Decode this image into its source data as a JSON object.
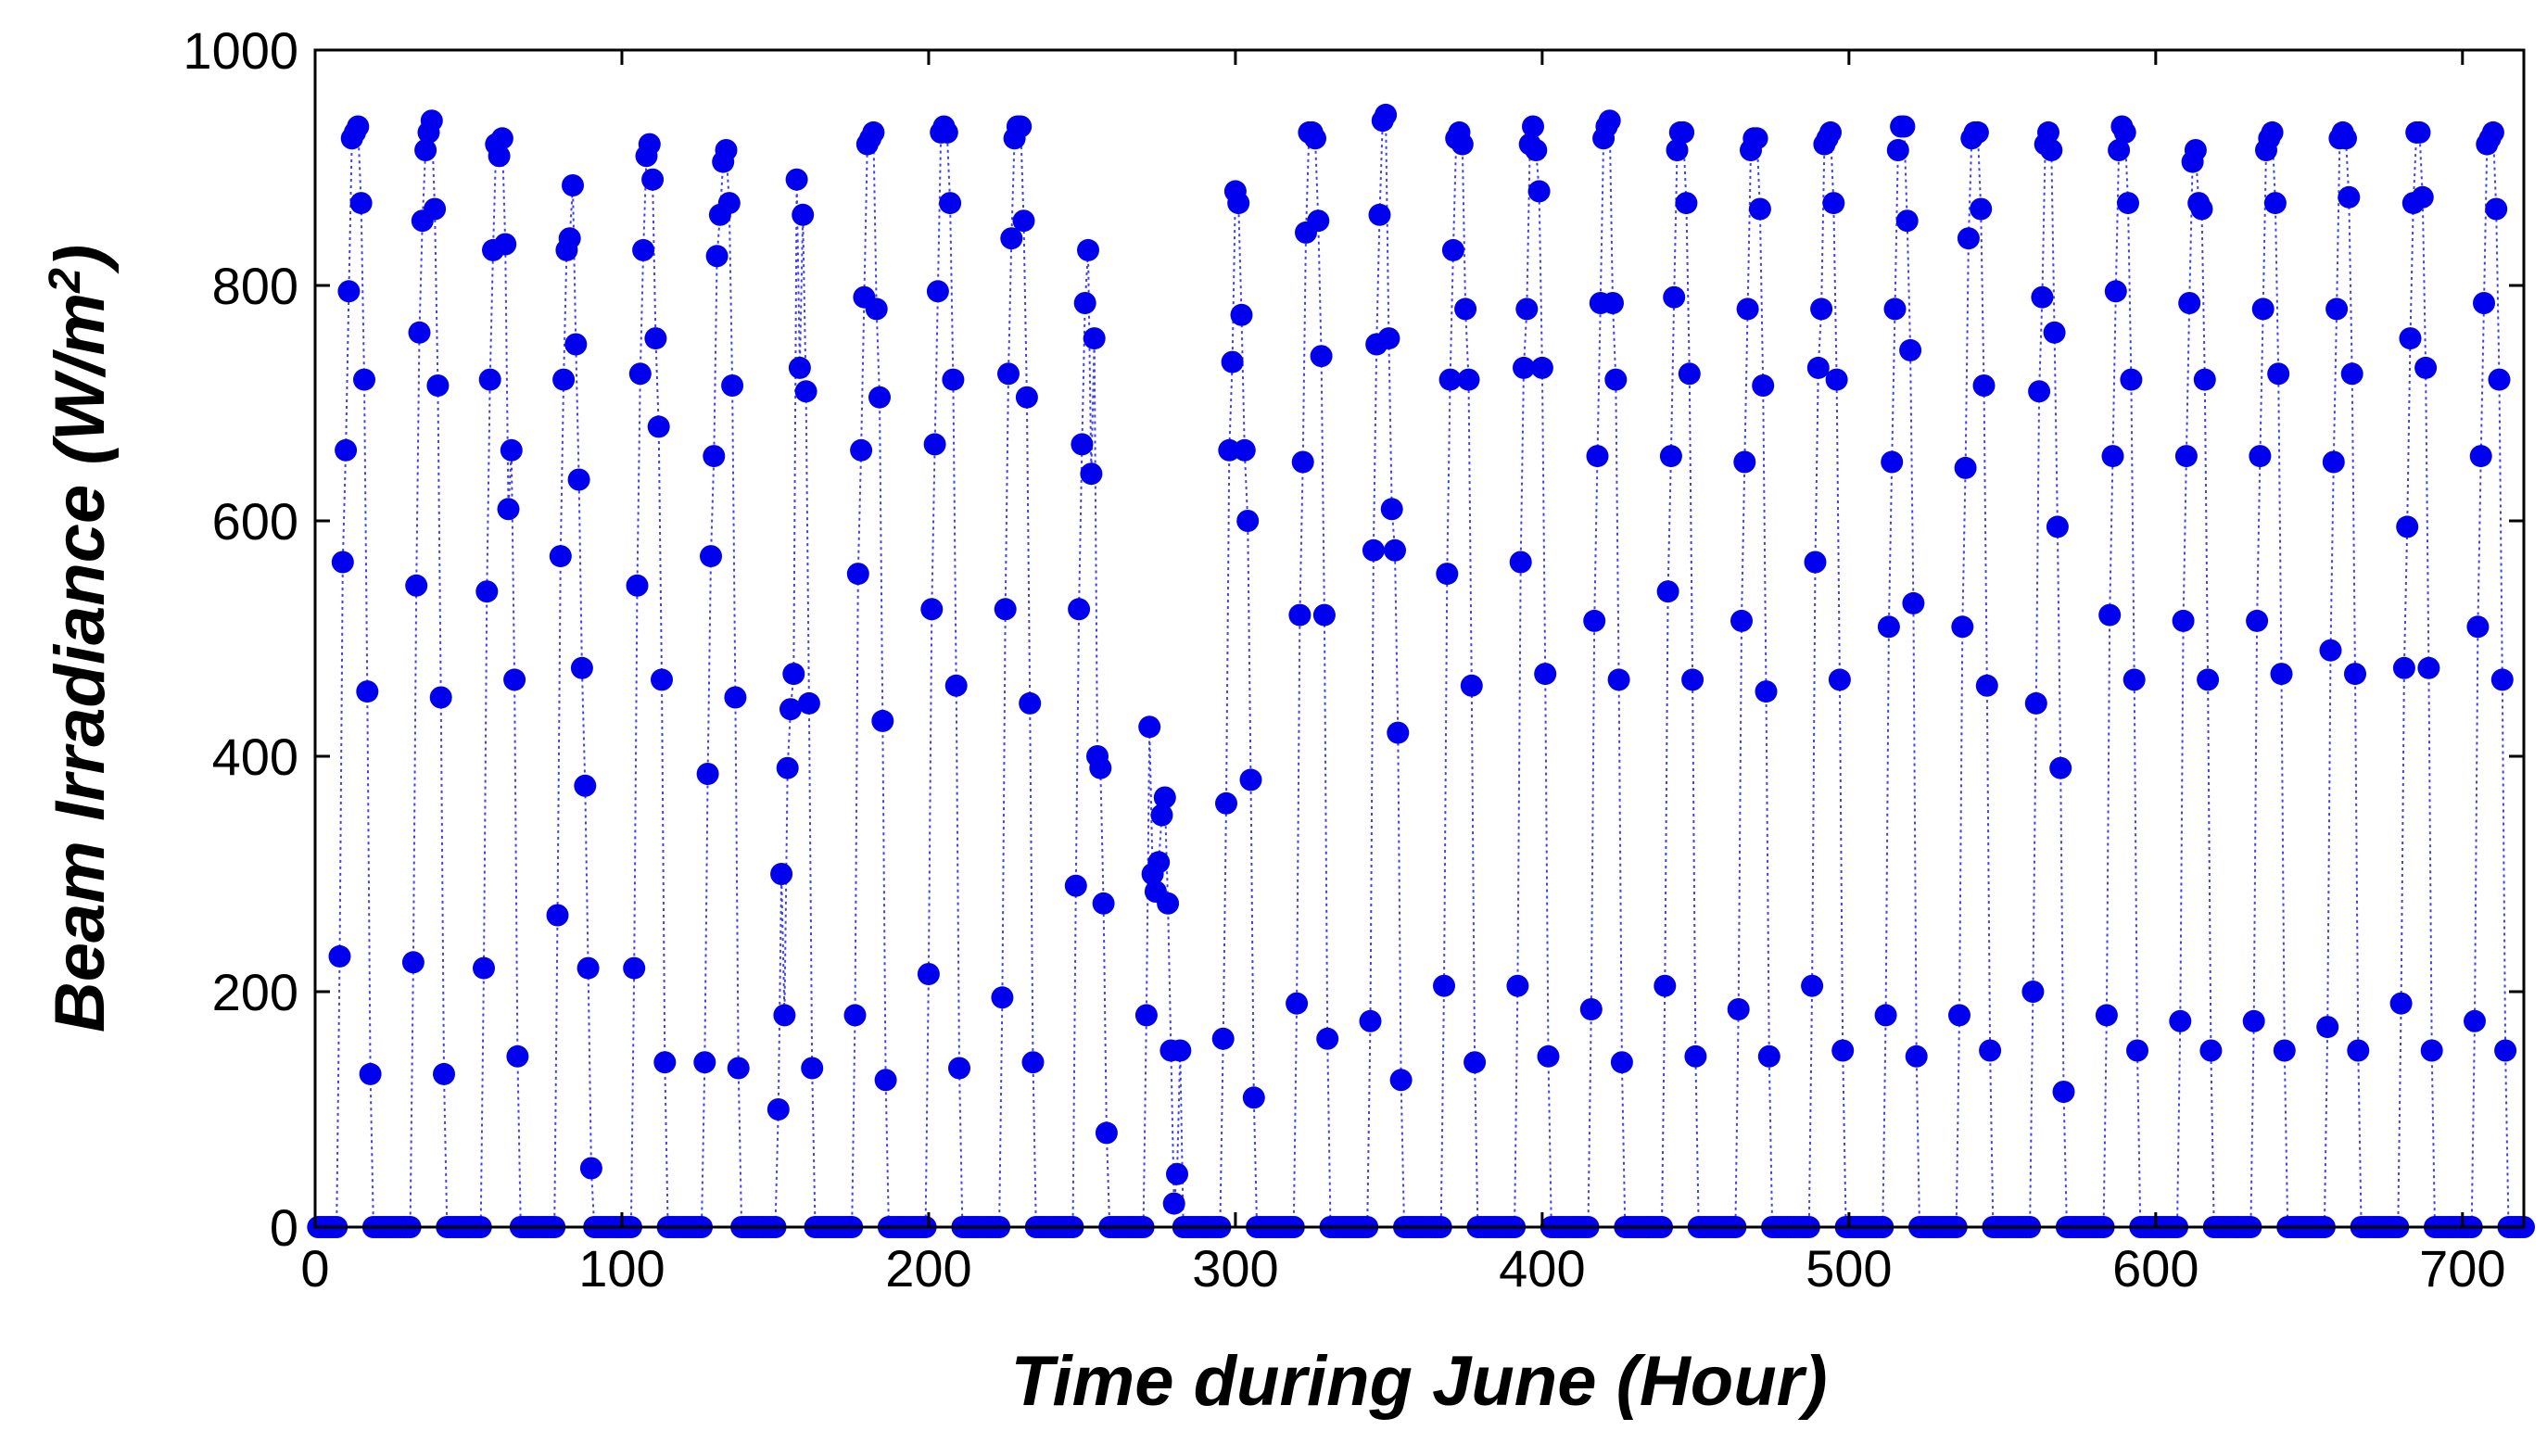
{
  "chart_data": {
    "type": "line",
    "title": "",
    "xlabel": "Time during June (Hour)",
    "ylabel": "Beam Irradiance (W/m²)",
    "ylabel_parts": {
      "main": "Beam Irradiance (W/m",
      "sup": "2",
      "end": ")"
    },
    "xlim": [
      0,
      720
    ],
    "ylim": [
      0,
      1000
    ],
    "xticks": [
      0,
      100,
      200,
      300,
      400,
      500,
      600,
      700
    ],
    "yticks": [
      0,
      200,
      400,
      600,
      800,
      1000
    ],
    "grid": false,
    "legend": "none",
    "series": [
      {
        "color": "#0000ee",
        "marker": "circle",
        "line_style": "dotted",
        "daily_profiles": [
          [
            0,
            230,
            565,
            660,
            795,
            925,
            930,
            935,
            870,
            720,
            455,
            130,
            0
          ],
          [
            0,
            225,
            545,
            760,
            855,
            915,
            930,
            940,
            865,
            715,
            450,
            130,
            0
          ],
          [
            0,
            220,
            540,
            720,
            830,
            920,
            910,
            925,
            835,
            610,
            660,
            465,
            145,
            0
          ],
          [
            0,
            265,
            570,
            720,
            830,
            840,
            885,
            750,
            635,
            475,
            375,
            220,
            50,
            0
          ],
          [
            0,
            220,
            545,
            725,
            830,
            910,
            920,
            890,
            755,
            680,
            465,
            140,
            0
          ],
          [
            0,
            140,
            385,
            570,
            655,
            825,
            860,
            905,
            915,
            870,
            715,
            450,
            135,
            0
          ],
          [
            0,
            100,
            300,
            180,
            390,
            440,
            470,
            890,
            730,
            860,
            710,
            445,
            135,
            0
          ],
          [
            0,
            180,
            555,
            660,
            790,
            920,
            925,
            930,
            780,
            705,
            430,
            125,
            0
          ],
          [
            0,
            215,
            525,
            665,
            795,
            930,
            935,
            930,
            870,
            720,
            460,
            135,
            0
          ],
          [
            0,
            195,
            525,
            725,
            840,
            925,
            935,
            935,
            855,
            705,
            445,
            140,
            0
          ],
          [
            0,
            290,
            525,
            665,
            785,
            830,
            640,
            755,
            400,
            390,
            275,
            80,
            0
          ],
          [
            0,
            180,
            425,
            300,
            285,
            310,
            350,
            365,
            275,
            150,
            20,
            45,
            150,
            0
          ],
          [
            0,
            160,
            360,
            660,
            735,
            880,
            870,
            775,
            660,
            600,
            380,
            110,
            0
          ],
          [
            0,
            190,
            520,
            650,
            845,
            930,
            930,
            925,
            855,
            740,
            520,
            160,
            0
          ],
          [
            0,
            175,
            575,
            750,
            860,
            940,
            945,
            755,
            610,
            575,
            420,
            125,
            0
          ],
          [
            0,
            205,
            555,
            720,
            830,
            925,
            930,
            920,
            780,
            720,
            460,
            140,
            0
          ],
          [
            0,
            205,
            565,
            730,
            780,
            920,
            935,
            915,
            880,
            730,
            470,
            145,
            0
          ],
          [
            0,
            185,
            515,
            655,
            785,
            925,
            935,
            940,
            785,
            720,
            465,
            140,
            0
          ],
          [
            0,
            205,
            540,
            655,
            790,
            915,
            930,
            930,
            870,
            725,
            465,
            145,
            0
          ],
          [
            0,
            185,
            515,
            650,
            780,
            915,
            925,
            925,
            865,
            715,
            455,
            145,
            0
          ],
          [
            0,
            205,
            565,
            730,
            780,
            920,
            925,
            930,
            870,
            720,
            465,
            150,
            0
          ],
          [
            0,
            180,
            510,
            650,
            780,
            915,
            935,
            935,
            855,
            745,
            530,
            145,
            0
          ],
          [
            0,
            180,
            510,
            645,
            840,
            925,
            930,
            930,
            865,
            715,
            460,
            150,
            0
          ],
          [
            0,
            200,
            445,
            710,
            790,
            920,
            930,
            915,
            760,
            595,
            390,
            115,
            0
          ],
          [
            0,
            180,
            520,
            655,
            795,
            915,
            935,
            930,
            870,
            720,
            465,
            150,
            0
          ],
          [
            0,
            175,
            515,
            655,
            785,
            905,
            915,
            870,
            865,
            720,
            465,
            150,
            0
          ],
          [
            0,
            175,
            515,
            655,
            780,
            915,
            925,
            930,
            870,
            725,
            470,
            150,
            0
          ],
          [
            0,
            170,
            490,
            650,
            780,
            925,
            930,
            925,
            875,
            725,
            470,
            150,
            0
          ],
          [
            0,
            190,
            475,
            595,
            755,
            870,
            930,
            930,
            875,
            730,
            475,
            150,
            0
          ],
          [
            0,
            175,
            510,
            655,
            785,
            920,
            925,
            930,
            865,
            720,
            465,
            150,
            0
          ]
        ]
      }
    ]
  }
}
